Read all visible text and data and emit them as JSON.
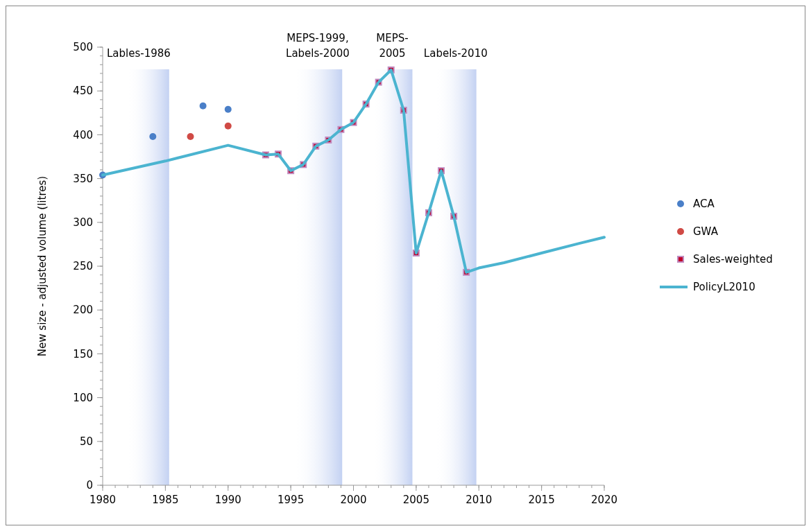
{
  "chart_data": {
    "type": "line",
    "ylabel": "New size - adjusted volume (litres)",
    "xlim": [
      1980,
      2020
    ],
    "xticks": [
      1980,
      1985,
      1990,
      1995,
      2000,
      2005,
      2010,
      2015,
      2020
    ],
    "ylim": [
      0,
      500
    ],
    "yticks": [
      0,
      50,
      100,
      150,
      200,
      250,
      300,
      350,
      400,
      450,
      500
    ],
    "grid": false,
    "legend": "right",
    "bands": [
      {
        "axis": "x",
        "from": 1981.9,
        "to": 1985.3,
        "label": "Lables-1986",
        "color": "#c3d1f2"
      },
      {
        "axis": "x",
        "from": 1995.2,
        "to": 1999.1,
        "label": "MEPS-1999,\nLabels-2000",
        "color": "#c3d1f2"
      },
      {
        "axis": "x",
        "from": 2001.5,
        "to": 2004.7,
        "label": "MEPS-\n2005",
        "color": "#c3d1f2"
      },
      {
        "axis": "x",
        "from": 2006.5,
        "to": 2009.8,
        "label": "Labels-2010",
        "color": "#c3d1f2"
      }
    ],
    "series": [
      {
        "name": "ACA",
        "type": "scatter",
        "marker": "circle",
        "color": "#4a7fc8",
        "x": [
          1980,
          1984,
          1988,
          1990
        ],
        "values": [
          354,
          398,
          433,
          429
        ]
      },
      {
        "name": "GWA",
        "type": "scatter",
        "marker": "circle",
        "color": "#d04a45",
        "x": [
          1987,
          1990
        ],
        "values": [
          398,
          410
        ]
      },
      {
        "name": "Sales-weighted",
        "type": "scatter",
        "marker": "square",
        "color": "#c0002a",
        "x": [
          1993,
          1994,
          1995,
          1996,
          1997,
          1998,
          1999,
          2000,
          2001,
          2002,
          2003,
          2004,
          2005,
          2006,
          2007,
          2008,
          2009
        ],
        "values": [
          377,
          378,
          359,
          366,
          387,
          394,
          406,
          414,
          435,
          460,
          474,
          428,
          265,
          311,
          359,
          307,
          243
        ]
      },
      {
        "name": "PolicyL2010",
        "marker": "none",
        "color": "#4bb4d0",
        "x": [
          1980,
          1985,
          1990,
          1993,
          1994,
          1995,
          1996,
          1997,
          1998,
          1999,
          2000,
          2001,
          2002,
          2003,
          2004,
          2005,
          2006,
          2007,
          2008,
          2009,
          2010,
          2012,
          2015,
          2018,
          2020
        ],
        "values": [
          354,
          370,
          388,
          377,
          378,
          359,
          366,
          387,
          394,
          406,
          414,
          435,
          460,
          474,
          428,
          265,
          311,
          359,
          307,
          243,
          248,
          254,
          265,
          276,
          283
        ]
      }
    ]
  }
}
